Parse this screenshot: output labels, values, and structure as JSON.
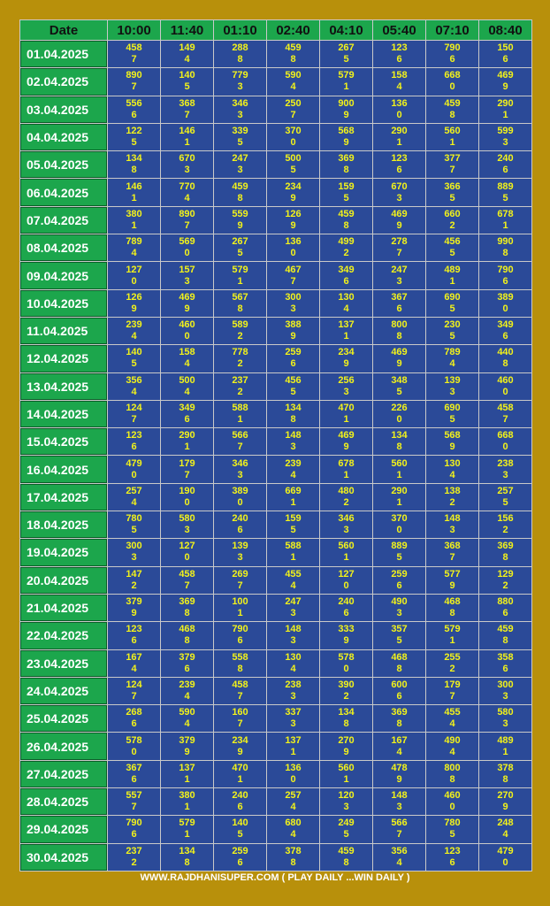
{
  "table": {
    "header": [
      "Date",
      "10:00",
      "11:40",
      "01:10",
      "02:40",
      "04:10",
      "05:40",
      "07:10",
      "08:40"
    ],
    "rows": [
      [
        "01.04.2025",
        [
          "458",
          "7"
        ],
        [
          "149",
          "4"
        ],
        [
          "288",
          "8"
        ],
        [
          "459",
          "8"
        ],
        [
          "267",
          "5"
        ],
        [
          "123",
          "6"
        ],
        [
          "790",
          "6"
        ],
        [
          "150",
          "6"
        ]
      ],
      [
        "02.04.2025",
        [
          "890",
          "7"
        ],
        [
          "140",
          "5"
        ],
        [
          "779",
          "3"
        ],
        [
          "590",
          "4"
        ],
        [
          "579",
          "1"
        ],
        [
          "158",
          "4"
        ],
        [
          "668",
          "0"
        ],
        [
          "469",
          "9"
        ]
      ],
      [
        "03.04.2025",
        [
          "556",
          "6"
        ],
        [
          "368",
          "7"
        ],
        [
          "346",
          "3"
        ],
        [
          "250",
          "7"
        ],
        [
          "900",
          "9"
        ],
        [
          "136",
          "0"
        ],
        [
          "459",
          "8"
        ],
        [
          "290",
          "1"
        ]
      ],
      [
        "04.04.2025",
        [
          "122",
          "5"
        ],
        [
          "146",
          "1"
        ],
        [
          "339",
          "5"
        ],
        [
          "370",
          "0"
        ],
        [
          "568",
          "9"
        ],
        [
          "290",
          "1"
        ],
        [
          "560",
          "1"
        ],
        [
          "599",
          "3"
        ]
      ],
      [
        "05.04.2025",
        [
          "134",
          "8"
        ],
        [
          "670",
          "3"
        ],
        [
          "247",
          "3"
        ],
        [
          "500",
          "5"
        ],
        [
          "369",
          "8"
        ],
        [
          "123",
          "6"
        ],
        [
          "377",
          "7"
        ],
        [
          "240",
          "6"
        ]
      ],
      [
        "06.04.2025",
        [
          "146",
          "1"
        ],
        [
          "770",
          "4"
        ],
        [
          "459",
          "8"
        ],
        [
          "234",
          "9"
        ],
        [
          "159",
          "5"
        ],
        [
          "670",
          "3"
        ],
        [
          "366",
          "5"
        ],
        [
          "889",
          "5"
        ]
      ],
      [
        "07.04.2025",
        [
          "380",
          "1"
        ],
        [
          "890",
          "7"
        ],
        [
          "559",
          "9"
        ],
        [
          "126",
          "9"
        ],
        [
          "459",
          "8"
        ],
        [
          "469",
          "9"
        ],
        [
          "660",
          "2"
        ],
        [
          "678",
          "1"
        ]
      ],
      [
        "08.04.2025",
        [
          "789",
          "4"
        ],
        [
          "569",
          "0"
        ],
        [
          "267",
          "5"
        ],
        [
          "136",
          "0"
        ],
        [
          "499",
          "2"
        ],
        [
          "278",
          "7"
        ],
        [
          "456",
          "5"
        ],
        [
          "990",
          "8"
        ]
      ],
      [
        "09.04.2025",
        [
          "127",
          "0"
        ],
        [
          "157",
          "3"
        ],
        [
          "579",
          "1"
        ],
        [
          "467",
          "7"
        ],
        [
          "349",
          "6"
        ],
        [
          "247",
          "3"
        ],
        [
          "489",
          "1"
        ],
        [
          "790",
          "6"
        ]
      ],
      [
        "10.04.2025",
        [
          "126",
          "9"
        ],
        [
          "469",
          "9"
        ],
        [
          "567",
          "8"
        ],
        [
          "300",
          "3"
        ],
        [
          "130",
          "4"
        ],
        [
          "367",
          "6"
        ],
        [
          "690",
          "5"
        ],
        [
          "389",
          "0"
        ]
      ],
      [
        "11.04.2025",
        [
          "239",
          "4"
        ],
        [
          "460",
          "0"
        ],
        [
          "589",
          "2"
        ],
        [
          "388",
          "9"
        ],
        [
          "137",
          "1"
        ],
        [
          "800",
          "8"
        ],
        [
          "230",
          "5"
        ],
        [
          "349",
          "6"
        ]
      ],
      [
        "12.04.2025",
        [
          "140",
          "5"
        ],
        [
          "158",
          "4"
        ],
        [
          "778",
          "2"
        ],
        [
          "259",
          "6"
        ],
        [
          "234",
          "9"
        ],
        [
          "469",
          "9"
        ],
        [
          "789",
          "4"
        ],
        [
          "440",
          "8"
        ]
      ],
      [
        "13.04.2025",
        [
          "356",
          "4"
        ],
        [
          "500",
          "4"
        ],
        [
          "237",
          "2"
        ],
        [
          "456",
          "5"
        ],
        [
          "256",
          "3"
        ],
        [
          "348",
          "5"
        ],
        [
          "139",
          "3"
        ],
        [
          "460",
          "0"
        ]
      ],
      [
        "14.04.2025",
        [
          "124",
          "7"
        ],
        [
          "349",
          "6"
        ],
        [
          "588",
          "1"
        ],
        [
          "134",
          "8"
        ],
        [
          "470",
          "1"
        ],
        [
          "226",
          "0"
        ],
        [
          "690",
          "5"
        ],
        [
          "458",
          "7"
        ]
      ],
      [
        "15.04.2025",
        [
          "123",
          "6"
        ],
        [
          "290",
          "1"
        ],
        [
          "566",
          "7"
        ],
        [
          "148",
          "3"
        ],
        [
          "469",
          "9"
        ],
        [
          "134",
          "8"
        ],
        [
          "568",
          "9"
        ],
        [
          "668",
          "0"
        ]
      ],
      [
        "16.04.2025",
        [
          "479",
          "0"
        ],
        [
          "179",
          "7"
        ],
        [
          "346",
          "3"
        ],
        [
          "239",
          "4"
        ],
        [
          "678",
          "1"
        ],
        [
          "560",
          "1"
        ],
        [
          "130",
          "4"
        ],
        [
          "238",
          "3"
        ]
      ],
      [
        "17.04.2025",
        [
          "257",
          "4"
        ],
        [
          "190",
          "0"
        ],
        [
          "389",
          "0"
        ],
        [
          "669",
          "1"
        ],
        [
          "480",
          "2"
        ],
        [
          "290",
          "1"
        ],
        [
          "138",
          "2"
        ],
        [
          "257",
          "5"
        ]
      ],
      [
        "18.04.2025",
        [
          "780",
          "5"
        ],
        [
          "580",
          "3"
        ],
        [
          "240",
          "6"
        ],
        [
          "159",
          "5"
        ],
        [
          "346",
          "3"
        ],
        [
          "370",
          "0"
        ],
        [
          "148",
          "3"
        ],
        [
          "156",
          "2"
        ]
      ],
      [
        "19.04.2025",
        [
          "300",
          "3"
        ],
        [
          "127",
          "0"
        ],
        [
          "139",
          "3"
        ],
        [
          "588",
          "1"
        ],
        [
          "560",
          "1"
        ],
        [
          "889",
          "5"
        ],
        [
          "368",
          "7"
        ],
        [
          "369",
          "8"
        ]
      ],
      [
        "20.04.2025",
        [
          "147",
          "2"
        ],
        [
          "458",
          "7"
        ],
        [
          "269",
          "7"
        ],
        [
          "455",
          "4"
        ],
        [
          "127",
          "0"
        ],
        [
          "259",
          "6"
        ],
        [
          "577",
          "9"
        ],
        [
          "129",
          "2"
        ]
      ],
      [
        "21.04.2025",
        [
          "379",
          "9"
        ],
        [
          "369",
          "8"
        ],
        [
          "100",
          "1"
        ],
        [
          "247",
          "3"
        ],
        [
          "240",
          "6"
        ],
        [
          "490",
          "3"
        ],
        [
          "468",
          "8"
        ],
        [
          "880",
          "6"
        ]
      ],
      [
        "22.04.2025",
        [
          "123",
          "6"
        ],
        [
          "468",
          "8"
        ],
        [
          "790",
          "6"
        ],
        [
          "148",
          "3"
        ],
        [
          "333",
          "9"
        ],
        [
          "357",
          "5"
        ],
        [
          "579",
          "1"
        ],
        [
          "459",
          "8"
        ]
      ],
      [
        "23.04.2025",
        [
          "167",
          "4"
        ],
        [
          "379",
          "6"
        ],
        [
          "558",
          "8"
        ],
        [
          "130",
          "4"
        ],
        [
          "578",
          "0"
        ],
        [
          "468",
          "8"
        ],
        [
          "255",
          "2"
        ],
        [
          "358",
          "6"
        ]
      ],
      [
        "24.04.2025",
        [
          "124",
          "7"
        ],
        [
          "239",
          "4"
        ],
        [
          "458",
          "7"
        ],
        [
          "238",
          "3"
        ],
        [
          "390",
          "2"
        ],
        [
          "600",
          "6"
        ],
        [
          "179",
          "7"
        ],
        [
          "300",
          "3"
        ]
      ],
      [
        "25.04.2025",
        [
          "268",
          "6"
        ],
        [
          "590",
          "4"
        ],
        [
          "160",
          "7"
        ],
        [
          "337",
          "3"
        ],
        [
          "134",
          "8"
        ],
        [
          "369",
          "8"
        ],
        [
          "455",
          "4"
        ],
        [
          "580",
          "3"
        ]
      ],
      [
        "26.04.2025",
        [
          "578",
          "0"
        ],
        [
          "379",
          "9"
        ],
        [
          "234",
          "9"
        ],
        [
          "137",
          "1"
        ],
        [
          "270",
          "9"
        ],
        [
          "167",
          "4"
        ],
        [
          "490",
          "4"
        ],
        [
          "489",
          "1"
        ]
      ],
      [
        "27.04.2025",
        [
          "367",
          "6"
        ],
        [
          "137",
          "1"
        ],
        [
          "470",
          "1"
        ],
        [
          "136",
          "0"
        ],
        [
          "560",
          "1"
        ],
        [
          "478",
          "9"
        ],
        [
          "800",
          "8"
        ],
        [
          "378",
          "8"
        ]
      ],
      [
        "28.04.2025",
        [
          "557",
          "7"
        ],
        [
          "380",
          "1"
        ],
        [
          "240",
          "6"
        ],
        [
          "257",
          "4"
        ],
        [
          "120",
          "3"
        ],
        [
          "148",
          "3"
        ],
        [
          "460",
          "0"
        ],
        [
          "270",
          "9"
        ]
      ],
      [
        "29.04.2025",
        [
          "790",
          "6"
        ],
        [
          "579",
          "1"
        ],
        [
          "140",
          "5"
        ],
        [
          "680",
          "4"
        ],
        [
          "249",
          "5"
        ],
        [
          "566",
          "7"
        ],
        [
          "780",
          "5"
        ],
        [
          "248",
          "4"
        ]
      ],
      [
        "30.04.2025",
        [
          "237",
          "2"
        ],
        [
          "134",
          "8"
        ],
        [
          "259",
          "6"
        ],
        [
          "378",
          "8"
        ],
        [
          "459",
          "8"
        ],
        [
          "356",
          "4"
        ],
        [
          "123",
          "6"
        ],
        [
          "479",
          "0"
        ]
      ]
    ]
  },
  "footer": "WWW.RAJDHANISUPER.COM ( PLAY DAILY ...WIN DAILY )"
}
